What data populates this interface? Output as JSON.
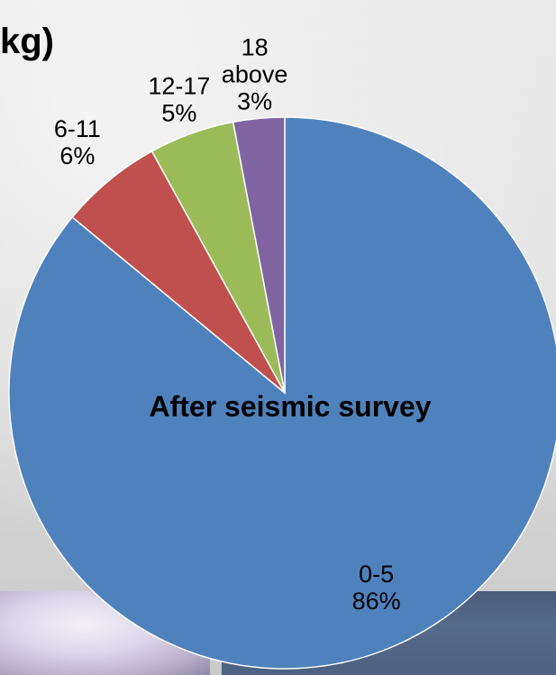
{
  "title_fragment": "kg)",
  "chart_data": {
    "type": "pie",
    "title": "After seismic survey",
    "categories": [
      "0-5",
      "6-11",
      "12-17",
      "18 above"
    ],
    "values": [
      86,
      6,
      5,
      3
    ],
    "value_labels": [
      "86%",
      "6%",
      "5%",
      "3%"
    ],
    "colors": [
      "#4F81BD",
      "#C0504D",
      "#9BBB59",
      "#8064A2"
    ]
  }
}
